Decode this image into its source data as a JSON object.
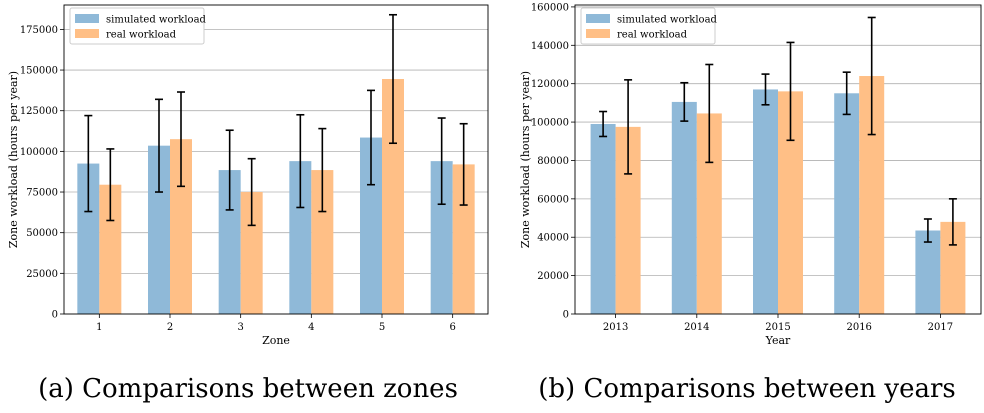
{
  "figure": {
    "captions": [
      "(a) Comparisons between zones",
      "(b) Comparisons between years"
    ]
  },
  "chart_data": [
    {
      "type": "bar",
      "xlabel": "Zone",
      "ylabel": "Zone workload (hours per year)",
      "categories": [
        "1",
        "2",
        "3",
        "4",
        "5",
        "6"
      ],
      "ylim": [
        0,
        190000
      ],
      "yticks": [
        0,
        25000,
        50000,
        75000,
        100000,
        125000,
        150000,
        175000
      ],
      "ytick_labels": [
        "0",
        "25000",
        "50000",
        "75000",
        "100000",
        "125000",
        "150000",
        "175000"
      ],
      "grid": "horizontal",
      "legend_position": "top-left",
      "series": [
        {
          "name": "simulated workload",
          "color": "#8fb9d8",
          "values": [
            92500,
            103500,
            88500,
            94000,
            108500,
            94000
          ],
          "error": [
            29500,
            28500,
            24500,
            28500,
            29000,
            26500
          ]
        },
        {
          "name": "real workload",
          "color": "#ffbf86",
          "values": [
            79500,
            107500,
            75000,
            88500,
            144500,
            92000
          ],
          "error": [
            22000,
            29000,
            20500,
            25500,
            39500,
            25000
          ]
        }
      ]
    },
    {
      "type": "bar",
      "xlabel": "Year",
      "ylabel": "Zone workload (hours per year)",
      "categories": [
        "2013",
        "2014",
        "2015",
        "2016",
        "2017"
      ],
      "ylim": [
        0,
        161000
      ],
      "yticks": [
        0,
        20000,
        40000,
        60000,
        80000,
        100000,
        120000,
        140000,
        160000
      ],
      "ytick_labels": [
        "0",
        "20000",
        "40000",
        "60000",
        "80000",
        "100000",
        "120000",
        "140000",
        "160000"
      ],
      "grid": "horizontal",
      "legend_position": "top-left",
      "series": [
        {
          "name": "simulated workload",
          "color": "#8fb9d8",
          "values": [
            99000,
            110500,
            117000,
            115000,
            43500
          ],
          "error": [
            6500,
            10000,
            8000,
            11000,
            6000
          ]
        },
        {
          "name": "real workload",
          "color": "#ffbf86",
          "values": [
            97500,
            104500,
            116000,
            124000,
            48000
          ],
          "error": [
            24500,
            25500,
            25500,
            30500,
            12000
          ]
        }
      ]
    }
  ]
}
